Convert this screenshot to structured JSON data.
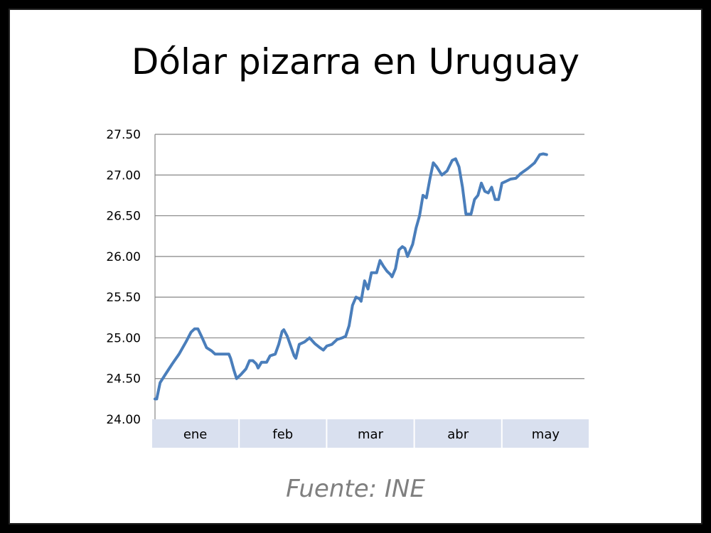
{
  "title": "Dólar pizarra en Uruguay",
  "source": "Fuente: INE",
  "chart_data": {
    "type": "line",
    "title": "Dólar pizarra en Uruguay",
    "xlabel": "",
    "ylabel": "",
    "ylim": [
      24.0,
      27.5
    ],
    "yticks": [
      "24.00",
      "24.50",
      "25.00",
      "25.50",
      "26.00",
      "26.50",
      "27.00",
      "27.50"
    ],
    "categories": [
      "ene",
      "feb",
      "mar",
      "abr",
      "may"
    ],
    "grid": true,
    "line_color": "#4a7ebb",
    "band_color": "#d9e0ef",
    "series": [
      {
        "values": [
          [
            0.0,
            24.25
          ],
          [
            0.02,
            24.25
          ],
          [
            0.06,
            24.45
          ],
          [
            0.12,
            24.55
          ],
          [
            0.2,
            24.68
          ],
          [
            0.28,
            24.8
          ],
          [
            0.36,
            24.95
          ],
          [
            0.42,
            25.07
          ],
          [
            0.46,
            25.11
          ],
          [
            0.5,
            25.11
          ],
          [
            0.55,
            25.0
          ],
          [
            0.6,
            24.88
          ],
          [
            0.66,
            24.84
          ],
          [
            0.7,
            24.8
          ],
          [
            0.78,
            24.8
          ],
          [
            0.86,
            24.8
          ],
          [
            0.88,
            24.75
          ],
          [
            0.92,
            24.6
          ],
          [
            0.95,
            24.5
          ],
          [
            1.0,
            24.55
          ],
          [
            1.06,
            24.62
          ],
          [
            1.1,
            24.72
          ],
          [
            1.14,
            24.72
          ],
          [
            1.18,
            24.68
          ],
          [
            1.2,
            24.63
          ],
          [
            1.24,
            24.7
          ],
          [
            1.3,
            24.7
          ],
          [
            1.34,
            24.78
          ],
          [
            1.4,
            24.8
          ],
          [
            1.44,
            24.92
          ],
          [
            1.48,
            25.08
          ],
          [
            1.5,
            25.1
          ],
          [
            1.54,
            25.02
          ],
          [
            1.58,
            24.9
          ],
          [
            1.62,
            24.78
          ],
          [
            1.64,
            24.75
          ],
          [
            1.68,
            24.92
          ],
          [
            1.74,
            24.95
          ],
          [
            1.8,
            25.0
          ],
          [
            1.86,
            24.93
          ],
          [
            1.92,
            24.88
          ],
          [
            1.96,
            24.85
          ],
          [
            2.0,
            24.9
          ],
          [
            2.06,
            24.92
          ],
          [
            2.12,
            24.98
          ],
          [
            2.18,
            25.0
          ],
          [
            2.22,
            25.02
          ],
          [
            2.26,
            25.15
          ],
          [
            2.3,
            25.4
          ],
          [
            2.34,
            25.5
          ],
          [
            2.38,
            25.48
          ],
          [
            2.4,
            25.45
          ],
          [
            2.44,
            25.7
          ],
          [
            2.48,
            25.6
          ],
          [
            2.52,
            25.8
          ],
          [
            2.58,
            25.8
          ],
          [
            2.62,
            25.95
          ],
          [
            2.66,
            25.88
          ],
          [
            2.7,
            25.82
          ],
          [
            2.74,
            25.78
          ],
          [
            2.76,
            25.75
          ],
          [
            2.8,
            25.85
          ],
          [
            2.84,
            26.08
          ],
          [
            2.88,
            26.12
          ],
          [
            2.91,
            26.1
          ],
          [
            2.94,
            26.0
          ],
          [
            3.0,
            26.15
          ],
          [
            3.04,
            26.35
          ],
          [
            3.08,
            26.5
          ],
          [
            3.12,
            26.75
          ],
          [
            3.16,
            26.72
          ],
          [
            3.2,
            26.95
          ],
          [
            3.24,
            27.15
          ],
          [
            3.28,
            27.1
          ],
          [
            3.34,
            27.0
          ],
          [
            3.4,
            27.05
          ],
          [
            3.46,
            27.18
          ],
          [
            3.5,
            27.2
          ],
          [
            3.54,
            27.1
          ],
          [
            3.58,
            26.85
          ],
          [
            3.62,
            26.52
          ],
          [
            3.68,
            26.52
          ],
          [
            3.72,
            26.7
          ],
          [
            3.76,
            26.75
          ],
          [
            3.8,
            26.9
          ],
          [
            3.84,
            26.8
          ],
          [
            3.88,
            26.78
          ],
          [
            3.92,
            26.85
          ],
          [
            3.96,
            26.7
          ],
          [
            4.0,
            26.7
          ],
          [
            4.04,
            26.9
          ],
          [
            4.08,
            26.92
          ],
          [
            4.14,
            26.95
          ],
          [
            4.2,
            26.96
          ],
          [
            4.26,
            27.02
          ],
          [
            4.34,
            27.08
          ],
          [
            4.42,
            27.15
          ],
          [
            4.48,
            27.25
          ],
          [
            4.52,
            27.26
          ],
          [
            4.56,
            27.25
          ]
        ]
      }
    ]
  }
}
